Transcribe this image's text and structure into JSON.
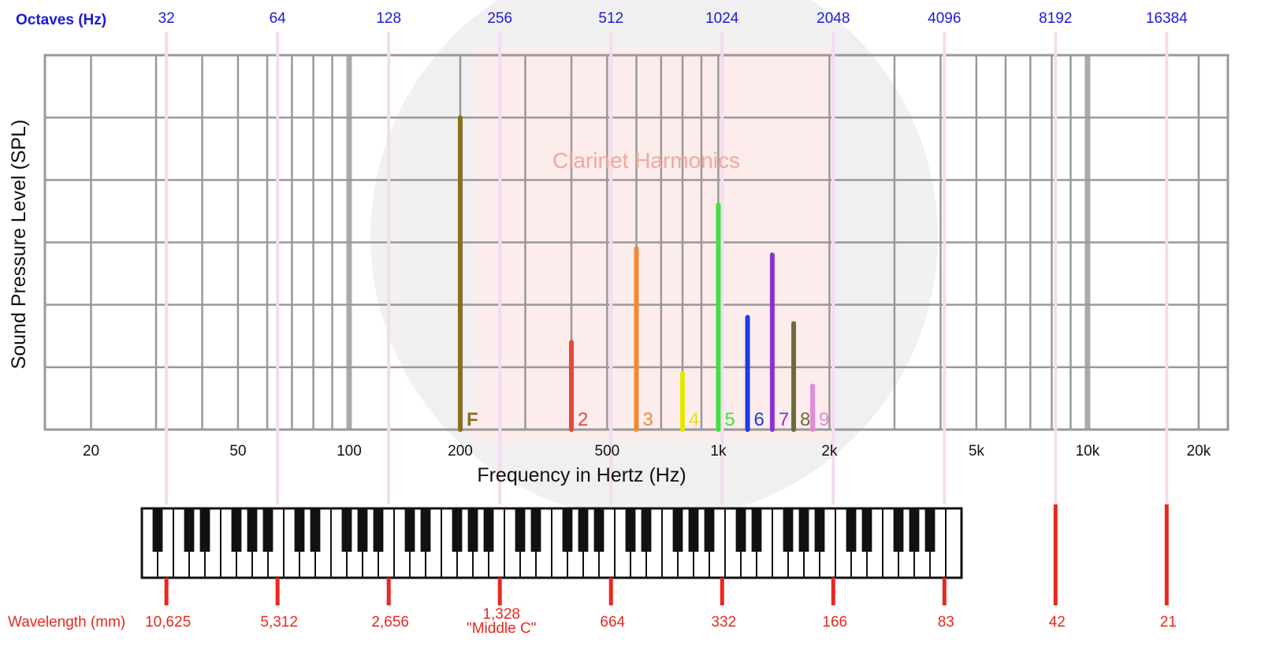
{
  "chart_data": {
    "type": "bar",
    "title": "Clarinet Harmonics",
    "xlabel": "Frequency in Hertz (Hz)",
    "ylabel": "Sound Pressure Level (SPL)",
    "x_scale": "log",
    "xlim": [
      15,
      24000
    ],
    "ylim": [
      0,
      6
    ],
    "grid": true,
    "x_ticks": [
      {
        "value": 20,
        "label": "20"
      },
      {
        "value": 50,
        "label": "50"
      },
      {
        "value": 100,
        "label": "100"
      },
      {
        "value": 200,
        "label": "200"
      },
      {
        "value": 500,
        "label": "500"
      },
      {
        "value": 1000,
        "label": "1k"
      },
      {
        "value": 2000,
        "label": "2k"
      },
      {
        "value": 5000,
        "label": "5k"
      },
      {
        "value": 10000,
        "label": "10k"
      },
      {
        "value": 20000,
        "label": "20k"
      }
    ],
    "series": [
      {
        "label": "F",
        "x": 200,
        "y": 5.0,
        "color": "#8c6e1e"
      },
      {
        "label": "2",
        "x": 400,
        "y": 1.4,
        "color": "#e8463c"
      },
      {
        "label": "3",
        "x": 600,
        "y": 2.9,
        "color": "#f08a32"
      },
      {
        "label": "4",
        "x": 800,
        "y": 0.9,
        "color": "#e6e600"
      },
      {
        "label": "5",
        "x": 1000,
        "y": 3.6,
        "color": "#3ee23e"
      },
      {
        "label": "6",
        "x": 1200,
        "y": 1.8,
        "color": "#1e3cdc"
      },
      {
        "label": "7",
        "x": 1400,
        "y": 2.8,
        "color": "#8c32c8"
      },
      {
        "label": "8",
        "x": 1600,
        "y": 1.7,
        "color": "#6b6b3a"
      },
      {
        "label": "9",
        "x": 1800,
        "y": 0.7,
        "color": "#e28adc"
      }
    ]
  },
  "octaves": {
    "label": "Octaves (Hz)",
    "values": [
      {
        "freq": 32,
        "label": "32"
      },
      {
        "freq": 64,
        "label": "64"
      },
      {
        "freq": 128,
        "label": "128"
      },
      {
        "freq": 256,
        "label": "256"
      },
      {
        "freq": 512,
        "label": "512"
      },
      {
        "freq": 1024,
        "label": "1024"
      },
      {
        "freq": 2048,
        "label": "2048"
      },
      {
        "freq": 4096,
        "label": "4096"
      },
      {
        "freq": 8192,
        "label": "8192"
      },
      {
        "freq": 16384,
        "label": "16384"
      }
    ]
  },
  "wavelength": {
    "label": "Wavelength (mm)",
    "values": [
      "10,625",
      "5,312",
      "2,656",
      "1,328",
      "664",
      "332",
      "166",
      "83",
      "42",
      "21"
    ],
    "middle_c_label": "\"Middle C\""
  },
  "colors": {
    "octave": "#1a1adc",
    "octave_line": "#f3dcf0",
    "wavelength": "#e8281e",
    "grid": "#999999",
    "title": "#f0a8a0"
  }
}
